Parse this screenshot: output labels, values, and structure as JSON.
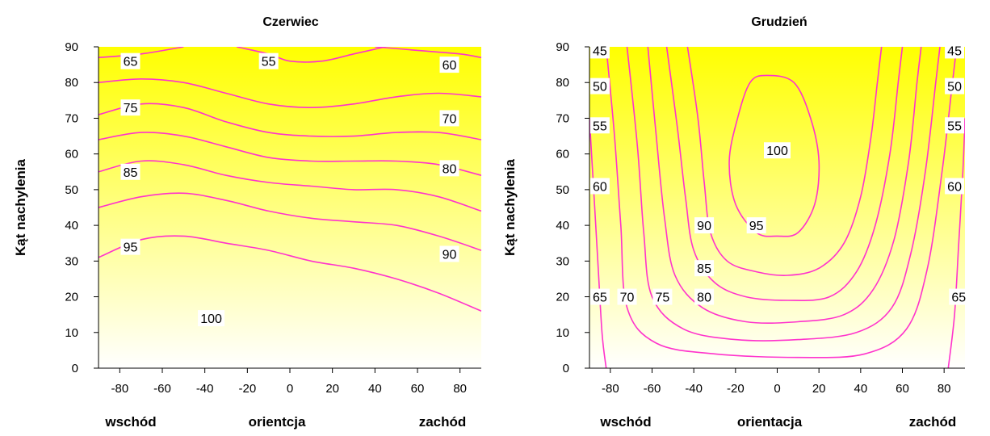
{
  "chart_data": [
    {
      "type": "contour",
      "title": "Czerwiec",
      "ylabel": "Kąt nachylenia",
      "xlabel_left": "wschód",
      "xlabel_center": "orientcja",
      "xlabel_right": "zachód",
      "xlim": [
        -90,
        90
      ],
      "ylim": [
        0,
        90
      ],
      "xticks": [
        -80,
        -60,
        -40,
        -20,
        0,
        20,
        40,
        60,
        80
      ],
      "yticks": [
        0,
        10,
        20,
        30,
        40,
        50,
        60,
        70,
        80,
        90
      ],
      "colors": {
        "top": "#ffff00",
        "bottom": "#ffffff",
        "lines": "#ff33cc"
      },
      "contours": [
        {
          "level": "55",
          "points": [
            [
              -25,
              90
            ],
            [
              -10,
              88
            ],
            [
              0,
              86
            ],
            [
              15,
              86
            ],
            [
              30,
              88
            ],
            [
              45,
              90
            ]
          ]
        },
        {
          "level": "60",
          "points": [
            [
              -90,
              87
            ],
            [
              -70,
              88
            ],
            [
              -50,
              90
            ]
          ],
          "points2": [
            [
              40,
              90
            ],
            [
              60,
              89
            ],
            [
              80,
              88
            ],
            [
              90,
              87
            ]
          ]
        },
        {
          "level": "65",
          "points": [
            [
              -90,
              80
            ],
            [
              -70,
              81
            ],
            [
              -50,
              80
            ],
            [
              -30,
              77
            ],
            [
              -10,
              74
            ],
            [
              10,
              73
            ],
            [
              30,
              74
            ],
            [
              50,
              76
            ],
            [
              70,
              77
            ],
            [
              90,
              76
            ]
          ]
        },
        {
          "level": "70",
          "points": [
            [
              -90,
              71
            ],
            [
              -70,
              74
            ],
            [
              -50,
              73
            ],
            [
              -30,
              69
            ],
            [
              -10,
              66
            ],
            [
              10,
              65
            ],
            [
              30,
              65
            ],
            [
              50,
              66
            ],
            [
              70,
              66
            ],
            [
              90,
              64
            ]
          ]
        },
        {
          "level": "75",
          "points": [
            [
              -90,
              64
            ],
            [
              -70,
              66
            ],
            [
              -50,
              65
            ],
            [
              -30,
              62
            ],
            [
              -10,
              59
            ],
            [
              10,
              58
            ],
            [
              30,
              58
            ],
            [
              50,
              58
            ],
            [
              70,
              57
            ],
            [
              90,
              54
            ]
          ]
        },
        {
          "level": "80",
          "points": [
            [
              -90,
              55
            ],
            [
              -70,
              58
            ],
            [
              -50,
              57
            ],
            [
              -30,
              54
            ],
            [
              -10,
              52
            ],
            [
              10,
              51
            ],
            [
              30,
              50
            ],
            [
              50,
              50
            ],
            [
              70,
              48
            ],
            [
              90,
              44
            ]
          ]
        },
        {
          "level": "85",
          "points": [
            [
              -90,
              45
            ],
            [
              -70,
              48
            ],
            [
              -50,
              49
            ],
            [
              -30,
              47
            ],
            [
              -10,
              44
            ],
            [
              10,
              42
            ],
            [
              30,
              41
            ],
            [
              50,
              40
            ],
            [
              70,
              37
            ],
            [
              90,
              33
            ]
          ]
        },
        {
          "level": "90",
          "points": [
            [
              -90,
              31
            ],
            [
              -70,
              36
            ],
            [
              -50,
              37
            ],
            [
              -30,
              35
            ],
            [
              -10,
              33
            ],
            [
              10,
              30
            ],
            [
              30,
              28
            ],
            [
              50,
              25
            ],
            [
              70,
              21
            ],
            [
              90,
              16
            ]
          ]
        }
      ],
      "labels": [
        {
          "text": "65",
          "x": -75,
          "y": 86
        },
        {
          "text": "55",
          "x": -10,
          "y": 86
        },
        {
          "text": "60",
          "x": 75,
          "y": 85
        },
        {
          "text": "75",
          "x": -75,
          "y": 73
        },
        {
          "text": "70",
          "x": 75,
          "y": 70
        },
        {
          "text": "85",
          "x": -75,
          "y": 55
        },
        {
          "text": "80",
          "x": 75,
          "y": 56
        },
        {
          "text": "95",
          "x": -75,
          "y": 34
        },
        {
          "text": "90",
          "x": 75,
          "y": 32
        },
        {
          "text": "100",
          "x": -37,
          "y": 14
        }
      ]
    },
    {
      "type": "contour",
      "title": "Grudzień",
      "ylabel": "Kąt  nachylenia",
      "xlabel_left": "wschód",
      "xlabel_center": "orientacja",
      "xlabel_right": "zachód",
      "xlim": [
        -90,
        90
      ],
      "ylim": [
        0,
        90
      ],
      "xticks": [
        -80,
        -60,
        -40,
        -20,
        0,
        20,
        40,
        60,
        80
      ],
      "yticks": [
        0,
        10,
        20,
        30,
        40,
        50,
        60,
        70,
        80,
        90
      ],
      "colors": {
        "top": "#ffff00",
        "bottom": "#ffffff",
        "lines": "#ff33cc"
      },
      "contours": [
        {
          "level": "95",
          "closed": true,
          "points": [
            [
              -5,
              82
            ],
            [
              8,
              80
            ],
            [
              16,
              70
            ],
            [
              20,
              58
            ],
            [
              18,
              46
            ],
            [
              10,
              38
            ],
            [
              0,
              37
            ],
            [
              -10,
              38
            ],
            [
              -20,
              46
            ],
            [
              -23,
              58
            ],
            [
              -19,
              70
            ],
            [
              -13,
              80
            ]
          ]
        },
        {
          "level": "90",
          "points": [
            [
              -43,
              90
            ],
            [
              -38,
              70
            ],
            [
              -35,
              52
            ],
            [
              -32,
              38
            ],
            [
              -24,
              30
            ],
            [
              -10,
              27
            ],
            [
              5,
              26
            ],
            [
              20,
              28
            ],
            [
              32,
              35
            ],
            [
              40,
              48
            ],
            [
              45,
              65
            ],
            [
              48,
              80
            ],
            [
              50,
              90
            ]
          ]
        },
        {
          "level": "85",
          "points": [
            [
              -53,
              90
            ],
            [
              -48,
              68
            ],
            [
              -44,
              48
            ],
            [
              -40,
              33
            ],
            [
              -30,
              24
            ],
            [
              -15,
              20
            ],
            [
              5,
              19
            ],
            [
              25,
              20
            ],
            [
              38,
              27
            ],
            [
              47,
              40
            ],
            [
              54,
              60
            ],
            [
              58,
              80
            ],
            [
              60,
              90
            ]
          ]
        },
        {
          "level": "80",
          "points": [
            [
              -62,
              90
            ],
            [
              -58,
              65
            ],
            [
              -54,
              42
            ],
            [
              -49,
              26
            ],
            [
              -36,
              17
            ],
            [
              -15,
              13
            ],
            [
              10,
              13
            ],
            [
              32,
              15
            ],
            [
              46,
              22
            ],
            [
              56,
              36
            ],
            [
              63,
              58
            ],
            [
              67,
              80
            ],
            [
              69,
              90
            ]
          ]
        },
        {
          "level": "75",
          "points": [
            [
              -72,
              90
            ],
            [
              -67,
              62
            ],
            [
              -64,
              38
            ],
            [
              -60,
              20
            ],
            [
              -45,
              11
            ],
            [
              -20,
              8
            ],
            [
              10,
              8
            ],
            [
              38,
              10
            ],
            [
              55,
              17
            ],
            [
              64,
              32
            ],
            [
              71,
              55
            ],
            [
              76,
              80
            ],
            [
              78,
              90
            ]
          ]
        },
        {
          "level": "70",
          "points": [
            [
              -82,
              90
            ],
            [
              -78,
              65
            ],
            [
              -75,
              40
            ],
            [
              -72,
              17
            ],
            [
              -58,
              7
            ],
            [
              -30,
              4
            ],
            [
              10,
              3
            ],
            [
              42,
              4
            ],
            [
              62,
              11
            ],
            [
              72,
              28
            ],
            [
              79,
              55
            ],
            [
              84,
              80
            ],
            [
              86,
              90
            ]
          ]
        },
        {
          "level": "65",
          "points": [
            [
              -90,
              70
            ],
            [
              -88,
              50
            ],
            [
              -86,
              30
            ],
            [
              -84,
              10
            ],
            [
              -82,
              0
            ]
          ],
          "points2": [
            [
              82,
              0
            ],
            [
              85,
              15
            ],
            [
              87,
              35
            ],
            [
              89,
              55
            ],
            [
              90,
              70
            ]
          ]
        }
      ],
      "labels": [
        {
          "text": "45",
          "x": -85,
          "y": 89
        },
        {
          "text": "45",
          "x": 85,
          "y": 89
        },
        {
          "text": "50",
          "x": -85,
          "y": 79
        },
        {
          "text": "50",
          "x": 85,
          "y": 79
        },
        {
          "text": "55",
          "x": -85,
          "y": 68
        },
        {
          "text": "55",
          "x": 85,
          "y": 68
        },
        {
          "text": "60",
          "x": -85,
          "y": 51
        },
        {
          "text": "60",
          "x": 85,
          "y": 51
        },
        {
          "text": "100",
          "x": 0,
          "y": 61
        },
        {
          "text": "90",
          "x": -35,
          "y": 40
        },
        {
          "text": "95",
          "x": -10,
          "y": 40
        },
        {
          "text": "85",
          "x": -35,
          "y": 28
        },
        {
          "text": "65",
          "x": -85,
          "y": 20
        },
        {
          "text": "70",
          "x": -72,
          "y": 20
        },
        {
          "text": "75",
          "x": -55,
          "y": 20
        },
        {
          "text": "80",
          "x": -35,
          "y": 20
        },
        {
          "text": "65",
          "x": 87,
          "y": 20
        }
      ]
    }
  ]
}
